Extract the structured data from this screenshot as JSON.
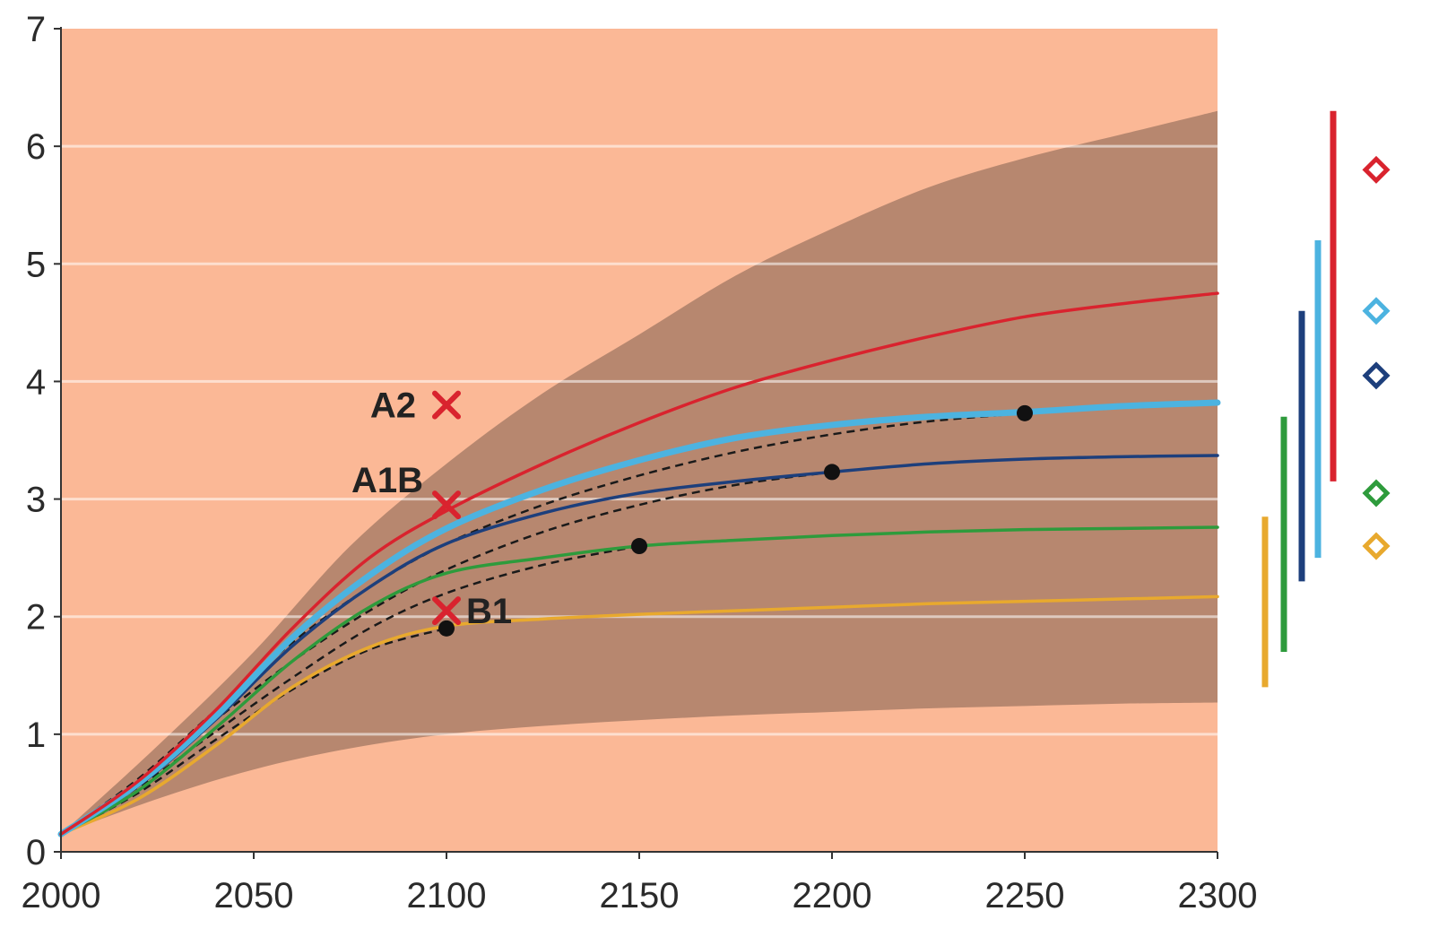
{
  "chart_data": {
    "type": "line",
    "title": "",
    "xlabel": "",
    "ylabel": "",
    "xlim": [
      2000,
      2300
    ],
    "ylim": [
      0,
      7
    ],
    "x_ticks": [
      "2000",
      "2050",
      "2100",
      "2150",
      "2200",
      "2250",
      "2300"
    ],
    "y_ticks": [
      "0",
      "1",
      "2",
      "3",
      "4",
      "5",
      "6",
      "7"
    ],
    "grid": "horizontal",
    "colors": {
      "plot_bg": "#fbb896",
      "uncertainty_band": "#b7876f",
      "red": "#d9232e",
      "light_blue": "#4cb3e0",
      "dark_blue": "#1d3f7c",
      "green": "#2e9b3c",
      "yellow": "#e8a92e",
      "markers": "#d9232e"
    },
    "uncertainty_band": {
      "x": [
        2000,
        2025,
        2050,
        2075,
        2100,
        2125,
        2150,
        2175,
        2200,
        2225,
        2250,
        2275,
        2300
      ],
      "upper": [
        0.15,
        0.9,
        1.7,
        2.6,
        3.3,
        3.9,
        4.4,
        4.9,
        5.3,
        5.65,
        5.9,
        6.1,
        6.3
      ],
      "lower": [
        0.15,
        0.45,
        0.7,
        0.88,
        1.0,
        1.07,
        1.12,
        1.16,
        1.19,
        1.22,
        1.24,
        1.26,
        1.27
      ]
    },
    "series": [
      {
        "key": "red",
        "x": [
          2000,
          2020,
          2040,
          2060,
          2080,
          2100,
          2125,
          2150,
          2175,
          2200,
          2225,
          2250,
          2275,
          2300
        ],
        "y": [
          0.15,
          0.6,
          1.2,
          1.9,
          2.5,
          2.9,
          3.3,
          3.65,
          3.95,
          4.18,
          4.38,
          4.55,
          4.66,
          4.75
        ]
      },
      {
        "key": "light_blue",
        "x": [
          2000,
          2020,
          2040,
          2060,
          2080,
          2100,
          2125,
          2150,
          2175,
          2200,
          2225,
          2250,
          2275,
          2300
        ],
        "y": [
          0.15,
          0.58,
          1.15,
          1.82,
          2.35,
          2.75,
          3.08,
          3.33,
          3.52,
          3.63,
          3.7,
          3.74,
          3.79,
          3.82
        ]
      },
      {
        "key": "dark_blue",
        "x": [
          2000,
          2020,
          2040,
          2060,
          2080,
          2100,
          2125,
          2150,
          2175,
          2200,
          2225,
          2250,
          2275,
          2300
        ],
        "y": [
          0.15,
          0.56,
          1.12,
          1.75,
          2.25,
          2.62,
          2.88,
          3.05,
          3.15,
          3.23,
          3.3,
          3.34,
          3.36,
          3.37
        ]
      },
      {
        "key": "green",
        "x": [
          2000,
          2020,
          2040,
          2060,
          2080,
          2100,
          2125,
          2150,
          2175,
          2200,
          2225,
          2250,
          2275,
          2300
        ],
        "y": [
          0.15,
          0.52,
          1.05,
          1.62,
          2.08,
          2.37,
          2.5,
          2.6,
          2.65,
          2.69,
          2.72,
          2.74,
          2.75,
          2.76
        ]
      },
      {
        "key": "yellow",
        "x": [
          2000,
          2020,
          2040,
          2060,
          2080,
          2100,
          2125,
          2150,
          2175,
          2200,
          2225,
          2250,
          2275,
          2300
        ],
        "y": [
          0.15,
          0.45,
          0.9,
          1.4,
          1.74,
          1.92,
          1.98,
          2.02,
          2.05,
          2.08,
          2.11,
          2.13,
          2.15,
          2.17
        ]
      }
    ],
    "dashed_series": [
      {
        "x": [
          2000,
          2020,
          2040,
          2060,
          2080,
          2100,
          2125,
          2150,
          2175,
          2200,
          2225,
          2250
        ],
        "y": [
          0.15,
          0.62,
          1.2,
          1.78,
          2.25,
          2.62,
          2.95,
          3.2,
          3.4,
          3.55,
          3.66,
          3.73
        ]
      },
      {
        "x": [
          2000,
          2020,
          2040,
          2060,
          2080,
          2100,
          2125,
          2150,
          2175,
          2200
        ],
        "y": [
          0.15,
          0.6,
          1.12,
          1.62,
          2.05,
          2.4,
          2.72,
          2.95,
          3.12,
          3.23
        ]
      },
      {
        "x": [
          2000,
          2020,
          2040,
          2060,
          2080,
          2100,
          2125,
          2150
        ],
        "y": [
          0.15,
          0.55,
          1.02,
          1.48,
          1.9,
          2.2,
          2.44,
          2.6
        ]
      },
      {
        "x": [
          2000,
          2020,
          2040,
          2060,
          2080,
          2100
        ],
        "y": [
          0.15,
          0.5,
          0.95,
          1.38,
          1.72,
          1.9
        ]
      }
    ],
    "stabilization_points": [
      {
        "x": 2100,
        "y": 1.9
      },
      {
        "x": 2150,
        "y": 2.6
      },
      {
        "x": 2200,
        "y": 3.23
      },
      {
        "x": 2250,
        "y": 3.73
      }
    ],
    "scenario_markers": [
      {
        "label": "A2",
        "x": 2100,
        "y": 3.8
      },
      {
        "label": "A1B",
        "x": 2100,
        "y": 2.95
      },
      {
        "label": "B1",
        "x": 2100,
        "y": 2.05
      }
    ],
    "range_bars": [
      {
        "key": "yellow",
        "low": 1.4,
        "high": 2.85,
        "best": 2.6
      },
      {
        "key": "green",
        "low": 1.7,
        "high": 3.7,
        "best": 3.05
      },
      {
        "key": "dark_blue",
        "low": 2.3,
        "high": 4.6,
        "best": 4.05
      },
      {
        "key": "light_blue",
        "low": 2.5,
        "high": 5.2,
        "best": 4.6
      },
      {
        "key": "red",
        "low": 3.15,
        "high": 6.3,
        "best": 5.8
      }
    ]
  }
}
